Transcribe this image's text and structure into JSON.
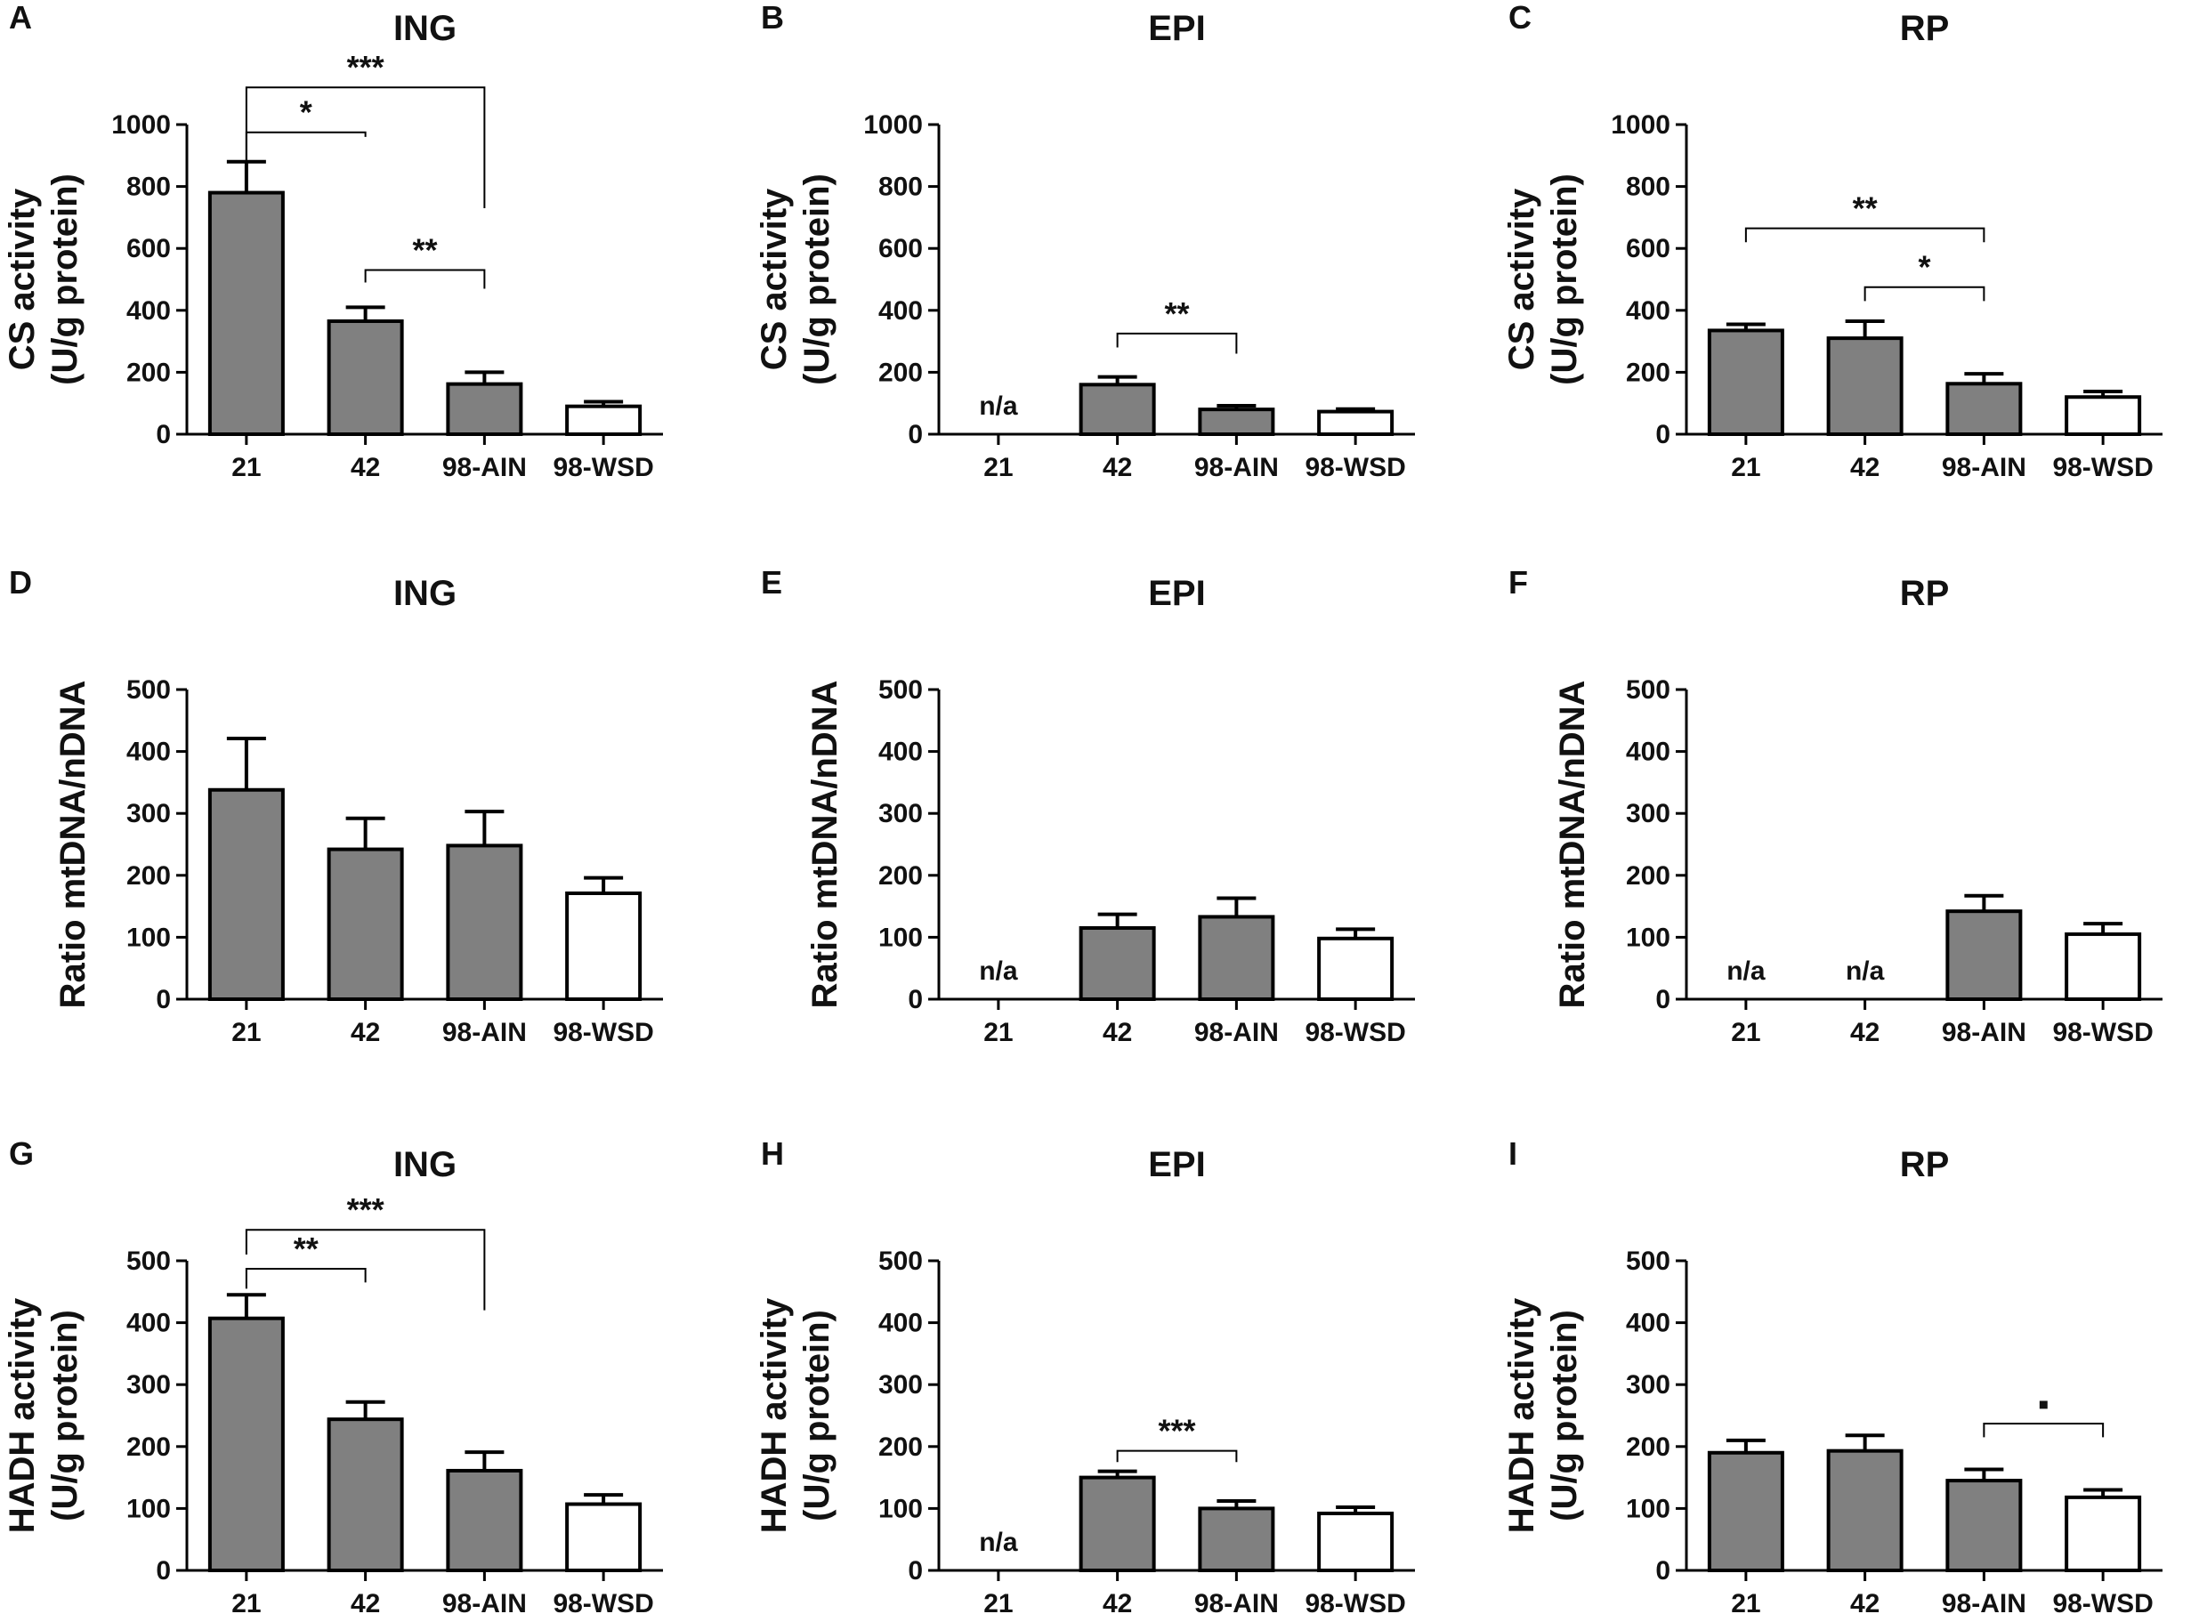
{
  "colors": {
    "filled": "#808080",
    "open": "#ffffff",
    "stroke": "#000000"
  },
  "categories": [
    "21",
    "42",
    "98-AIN",
    "98-WSD"
  ],
  "chart_data": [
    {
      "type": "bar",
      "panel": "A",
      "title": "ING",
      "ylabel": [
        "CS activity",
        "(U/g protein)"
      ],
      "ylim": [
        0,
        1000
      ],
      "yticks": [
        "0",
        "200",
        "400",
        "600",
        "800",
        "1000"
      ],
      "values": [
        780,
        365,
        162,
        90
      ],
      "errors": [
        100,
        45,
        38,
        15
      ],
      "fills": [
        "filled",
        "filled",
        "filled",
        "open"
      ],
      "na_label": "n/a",
      "significance": [
        {
          "from": 0,
          "to": 1,
          "label": "*",
          "y": 975,
          "tick_from": 870,
          "tick_to": 960
        },
        {
          "from": 0,
          "to": 2,
          "label": "***",
          "y": 1120,
          "tick_from": 870,
          "tick_to": 730
        },
        {
          "from": 1,
          "to": 2,
          "label": "**",
          "y": 530,
          "tick_from": 490,
          "tick_to": 470
        }
      ]
    },
    {
      "type": "bar",
      "panel": "B",
      "title": "EPI",
      "ylabel": [
        "CS activity",
        "(U/g protein)"
      ],
      "ylim": [
        0,
        1000
      ],
      "yticks": [
        "0",
        "200",
        "400",
        "600",
        "800",
        "1000"
      ],
      "values": [
        null,
        160,
        80,
        73
      ],
      "errors": [
        null,
        25,
        12,
        8
      ],
      "fills": [
        "filled",
        "filled",
        "filled",
        "open"
      ],
      "na_label": "n/a",
      "significance": [
        {
          "from": 1,
          "to": 2,
          "label": "**",
          "y": 325,
          "tick_from": 280,
          "tick_to": 260
        }
      ]
    },
    {
      "type": "bar",
      "panel": "C",
      "title": "RP",
      "ylabel": [
        "CS activity",
        "(U/g protein)"
      ],
      "ylim": [
        0,
        1000
      ],
      "yticks": [
        "0",
        "200",
        "400",
        "600",
        "800",
        "1000"
      ],
      "values": [
        335,
        310,
        163,
        120
      ],
      "errors": [
        20,
        55,
        32,
        18
      ],
      "fills": [
        "filled",
        "filled",
        "filled",
        "open"
      ],
      "na_label": "n/a",
      "significance": [
        {
          "from": 0,
          "to": 2,
          "label": "**",
          "y": 665,
          "tick_from": 620,
          "tick_to": 620
        },
        {
          "from": 1,
          "to": 2,
          "label": "*",
          "y": 475,
          "tick_from": 430,
          "tick_to": 430
        }
      ]
    },
    {
      "type": "bar",
      "panel": "D",
      "title": "ING",
      "ylabel": [
        "Ratio mtDNA/nDNA"
      ],
      "ylim": [
        0,
        500
      ],
      "yticks": [
        "0",
        "100",
        "200",
        "300",
        "400",
        "500"
      ],
      "values": [
        338,
        242,
        248,
        171
      ],
      "errors": [
        83,
        50,
        55,
        25
      ],
      "fills": [
        "filled",
        "filled",
        "filled",
        "open"
      ],
      "na_label": "n/a",
      "significance": []
    },
    {
      "type": "bar",
      "panel": "E",
      "title": "EPI",
      "ylabel": [
        "Ratio mtDNA/nDNA"
      ],
      "ylim": [
        0,
        500
      ],
      "yticks": [
        "0",
        "100",
        "200",
        "300",
        "400",
        "500"
      ],
      "values": [
        null,
        115,
        133,
        98
      ],
      "errors": [
        null,
        22,
        30,
        15
      ],
      "fills": [
        "filled",
        "filled",
        "filled",
        "open"
      ],
      "na_label": "n/a",
      "significance": []
    },
    {
      "type": "bar",
      "panel": "F",
      "title": "RP",
      "ylabel": [
        "Ratio mtDNA/nDNA"
      ],
      "ylim": [
        0,
        500
      ],
      "yticks": [
        "0",
        "100",
        "200",
        "300",
        "400",
        "500"
      ],
      "values": [
        null,
        null,
        142,
        105
      ],
      "errors": [
        null,
        null,
        25,
        17
      ],
      "fills": [
        "filled",
        "filled",
        "filled",
        "open"
      ],
      "na_label": "n/a",
      "significance": []
    },
    {
      "type": "bar",
      "panel": "G",
      "title": "ING",
      "ylabel": [
        "HADH activity",
        "(U/g protein)"
      ],
      "ylim": [
        0,
        500
      ],
      "yticks": [
        "0",
        "100",
        "200",
        "300",
        "400",
        "500"
      ],
      "values": [
        407,
        244,
        161,
        107
      ],
      "errors": [
        38,
        28,
        30,
        15
      ],
      "fills": [
        "filled",
        "filled",
        "filled",
        "open"
      ],
      "na_label": "n/a",
      "significance": [
        {
          "from": 0,
          "to": 1,
          "label": "**",
          "y": 487,
          "tick_from": 455,
          "tick_to": 465
        },
        {
          "from": 0,
          "to": 2,
          "label": "***",
          "y": 550,
          "tick_from": 510,
          "tick_to": 420
        }
      ]
    },
    {
      "type": "bar",
      "panel": "H",
      "title": "EPI",
      "ylabel": [
        "HADH activity",
        "(U/g protein)"
      ],
      "ylim": [
        0,
        500
      ],
      "yticks": [
        "0",
        "100",
        "200",
        "300",
        "400",
        "500"
      ],
      "values": [
        null,
        150,
        100,
        92
      ],
      "errors": [
        null,
        10,
        12,
        10
      ],
      "fills": [
        "filled",
        "filled",
        "filled",
        "open"
      ],
      "na_label": "n/a",
      "significance": [
        {
          "from": 1,
          "to": 2,
          "label": "***",
          "y": 193,
          "tick_from": 175,
          "tick_to": 175
        }
      ]
    },
    {
      "type": "bar",
      "panel": "I",
      "title": "RP",
      "ylabel": [
        "HADH activity",
        "(U/g protein)"
      ],
      "ylim": [
        0,
        500
      ],
      "yticks": [
        "0",
        "100",
        "200",
        "300",
        "400",
        "500"
      ],
      "values": [
        190,
        193,
        145,
        118
      ],
      "errors": [
        20,
        25,
        18,
        12
      ],
      "fills": [
        "filled",
        "filled",
        "filled",
        "open"
      ],
      "na_label": "n/a",
      "significance": [
        {
          "from": 2,
          "to": 3,
          "label": "▪",
          "y": 237,
          "tick_from": 215,
          "tick_to": 215
        }
      ]
    }
  ]
}
